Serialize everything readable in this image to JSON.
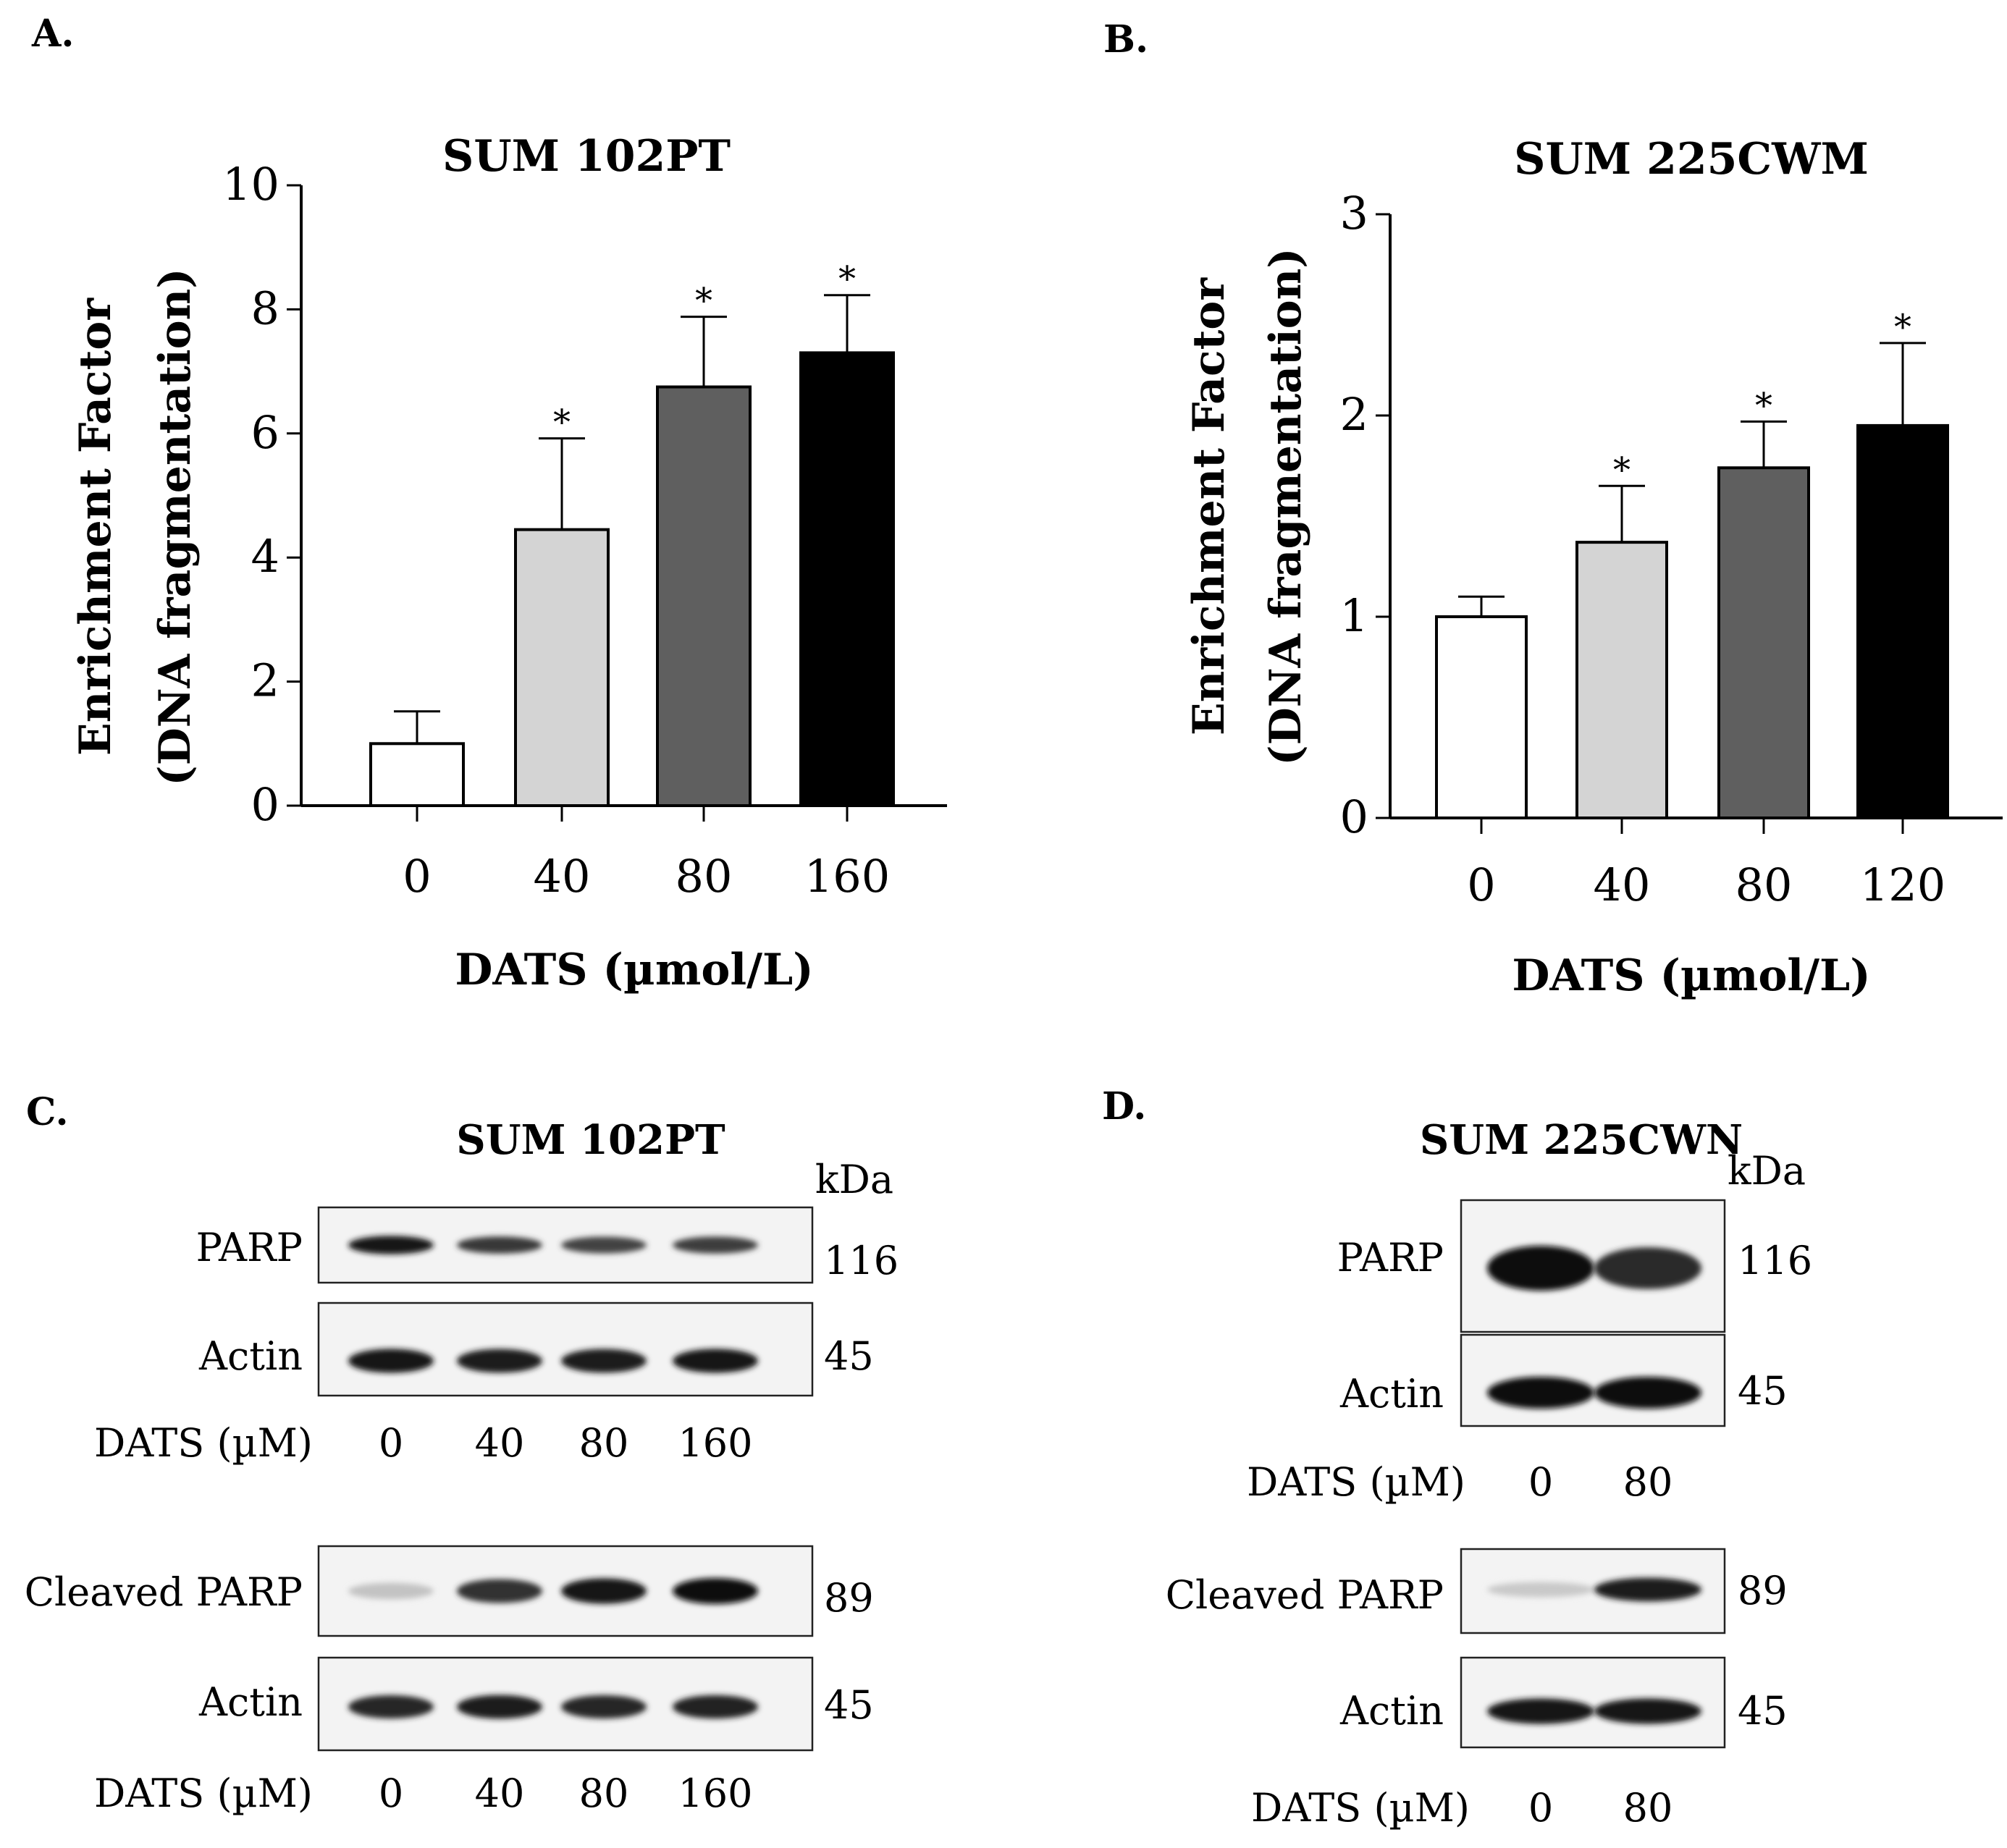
{
  "chart_data": [
    {
      "type": "bar",
      "panel": "A.",
      "title": "SUM 102PT",
      "xlabel": "DATS (µmol/L)",
      "ylabel_line1": "Enrichment Factor",
      "ylabel_line2": "(DNA fragmentation)",
      "ylim": [
        0,
        10
      ],
      "yticks": [
        0,
        2,
        4,
        6,
        8,
        10
      ],
      "categories": [
        "0",
        "40",
        "80",
        "160"
      ],
      "values": [
        1.0,
        4.45,
        6.75,
        7.3
      ],
      "errors": [
        0.52,
        1.47,
        1.13,
        0.93
      ],
      "significance": [
        "",
        "*",
        "*",
        "*"
      ],
      "colors": [
        "#ffffff",
        "#d4d4d4",
        "#5f5f5f",
        "#000000"
      ]
    },
    {
      "type": "bar",
      "panel": "B.",
      "title": "SUM 225CWM",
      "xlabel": "DATS (µmol/L)",
      "ylabel_line1": "Enrichment Factor",
      "ylabel_line2": "(DNA fragmentation)",
      "ylim": [
        0,
        3
      ],
      "yticks": [
        0,
        1,
        2,
        3
      ],
      "categories": [
        "0",
        "40",
        "80",
        "120"
      ],
      "values": [
        1.0,
        1.37,
        1.74,
        1.95
      ],
      "errors": [
        0.1,
        0.28,
        0.23,
        0.41
      ],
      "significance": [
        "",
        "*",
        "*",
        "*"
      ],
      "colors": [
        "#ffffff",
        "#d4d4d4",
        "#5f5f5f",
        "#000000"
      ]
    }
  ],
  "blots": {
    "c": {
      "panel": "C.",
      "title": "SUM 102PT",
      "kda_label": "kDa",
      "treatment_label": "DATS (µM)",
      "doses": [
        "0",
        "40",
        "80",
        "160"
      ],
      "parp": {
        "label": "PARP",
        "kda": "116",
        "intensities": [
          0.95,
          0.8,
          0.75,
          0.78
        ]
      },
      "actin1": {
        "label": "Actin",
        "kda": "45",
        "intensities": [
          0.95,
          0.93,
          0.93,
          0.95
        ]
      },
      "cleaved": {
        "label": "Cleaved PARP",
        "kda": "89",
        "intensities": [
          0.18,
          0.82,
          0.95,
          1.0
        ]
      },
      "actin2": {
        "label": "Actin",
        "kda": "45",
        "intensities": [
          0.88,
          0.92,
          0.88,
          0.9
        ]
      }
    },
    "d": {
      "panel": "D.",
      "title": "SUM 225CWN",
      "kda_label": "kDa",
      "treatment_label": "DATS (µM)",
      "doses": [
        "0",
        "80"
      ],
      "parp": {
        "label": "PARP",
        "kda": "116",
        "intensities": [
          1.0,
          0.85
        ]
      },
      "actin1": {
        "label": "Actin",
        "kda": "45",
        "intensities": [
          1.0,
          1.0
        ]
      },
      "cleaved": {
        "label": "Cleaved PARP",
        "kda": "89",
        "intensities": [
          0.15,
          0.92
        ]
      },
      "actin2": {
        "label": "Actin",
        "kda": "45",
        "intensities": [
          0.95,
          0.95
        ]
      }
    }
  }
}
